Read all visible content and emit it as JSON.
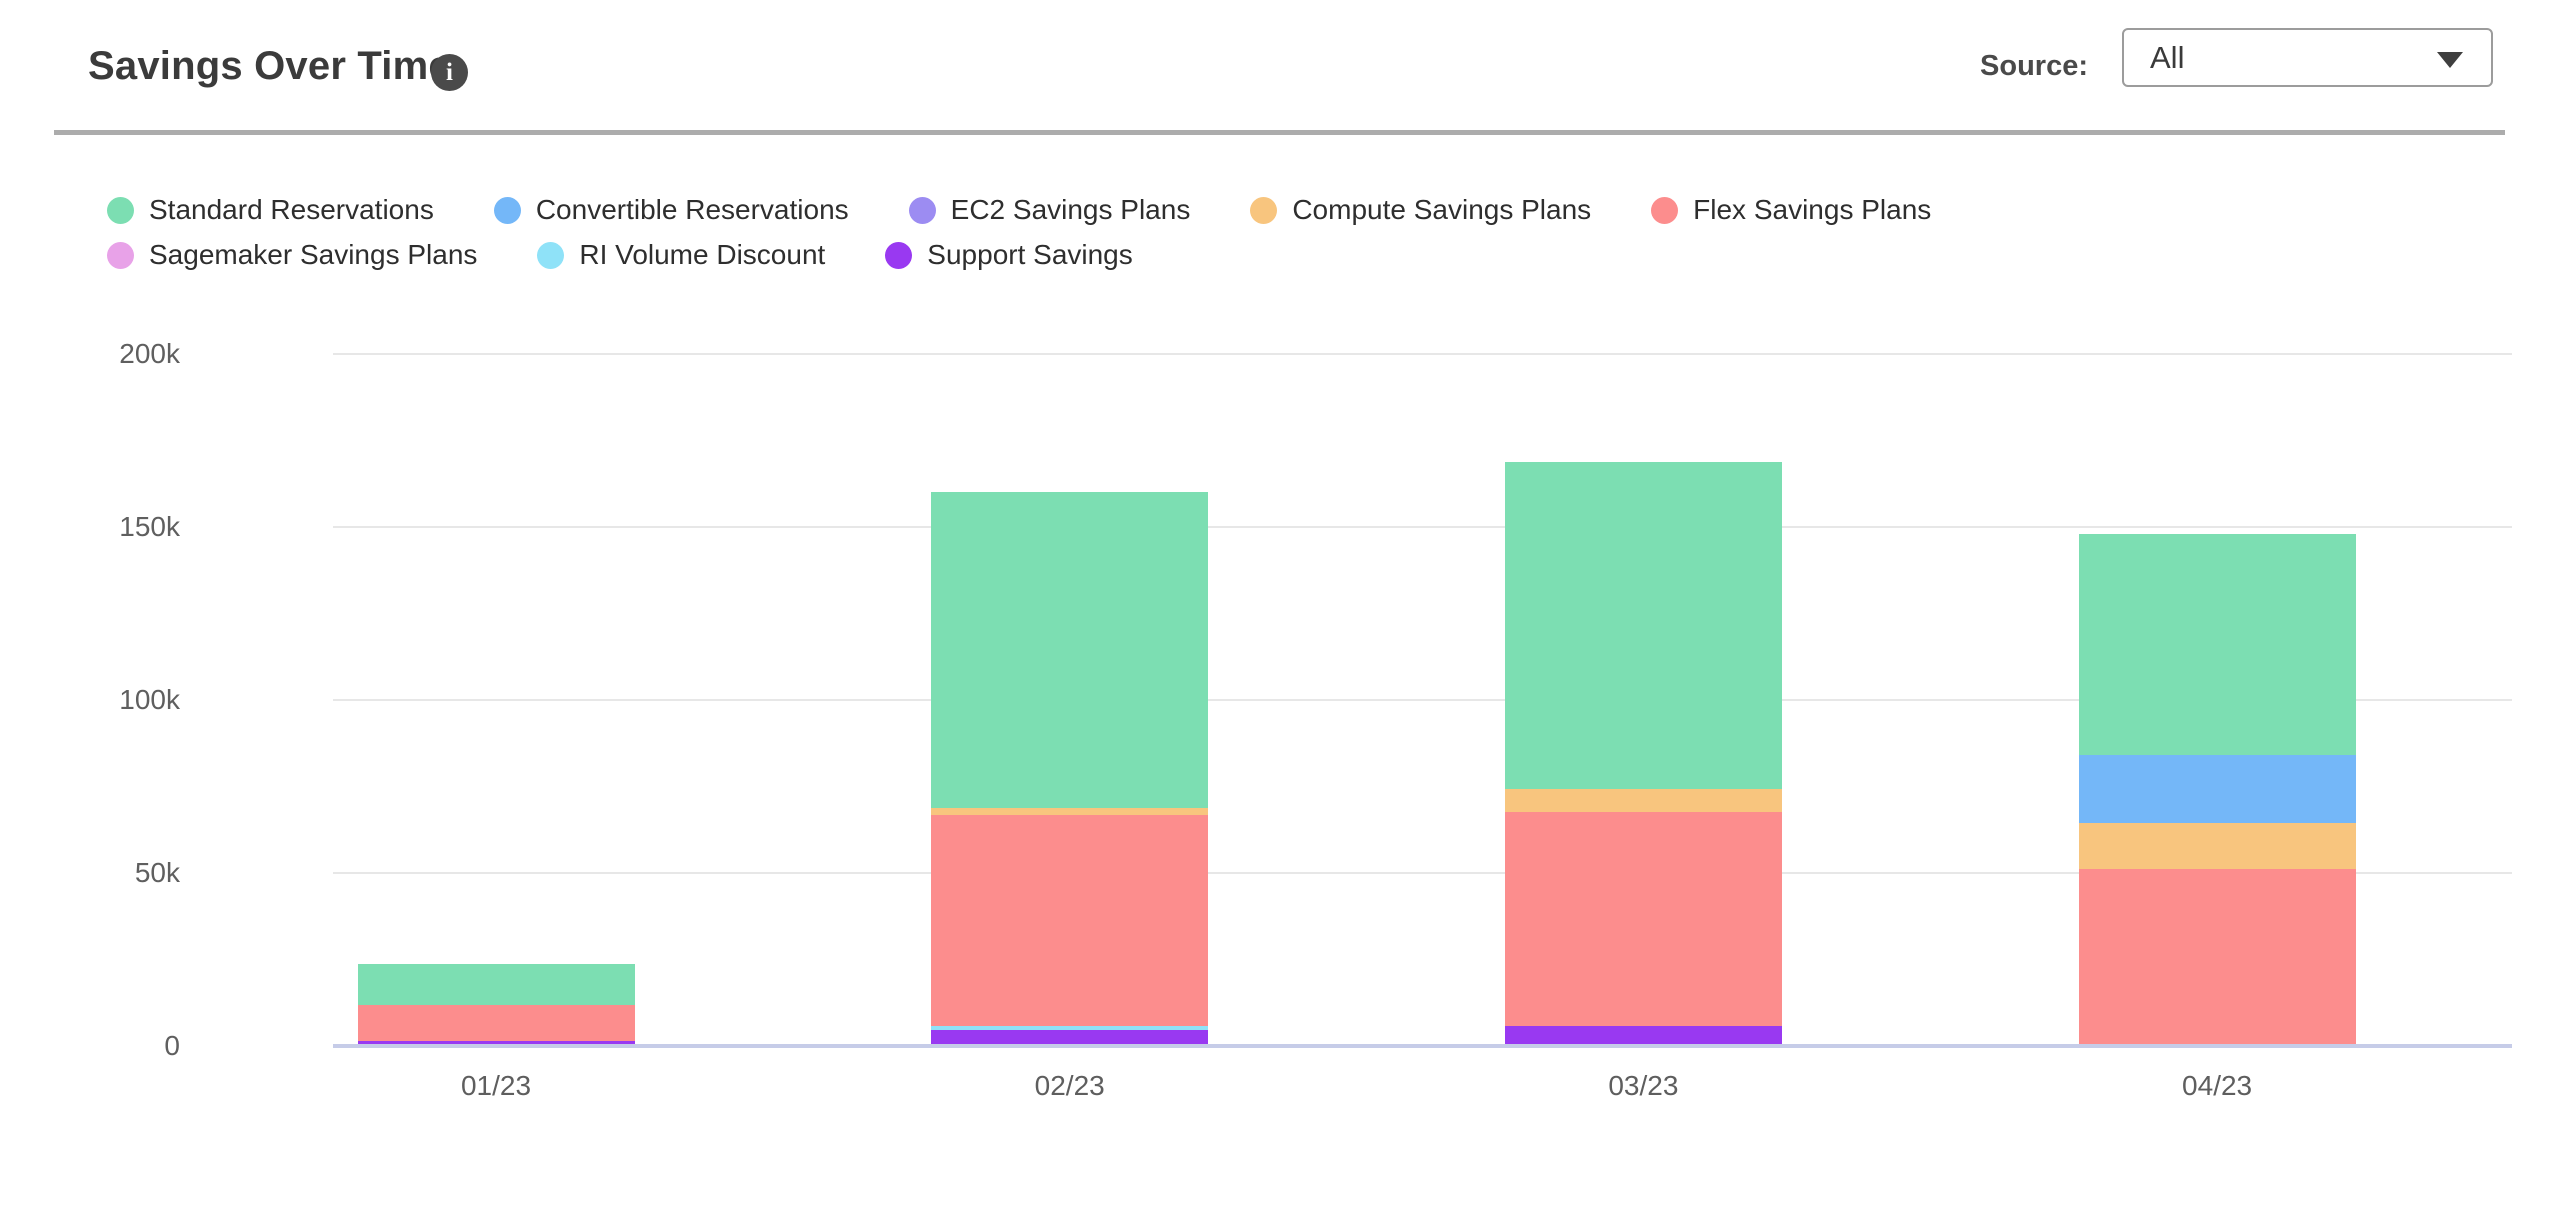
{
  "header": {
    "title": "Savings Over Time",
    "info_icon": "i",
    "source_label": "Source:",
    "source_value": "All"
  },
  "chart_data": {
    "type": "bar",
    "stacked": true,
    "title": "Savings Over Time",
    "unit": "USD thousands",
    "categories": [
      "01/23",
      "02/23",
      "03/23",
      "04/23"
    ],
    "series": [
      {
        "name": "Standard Reservations",
        "color": "#7CDEB2",
        "values": [
          12.0,
          91.5,
          94.6,
          64.0
        ]
      },
      {
        "name": "Convertible Reservations",
        "color": "#74B7F8",
        "values": [
          0,
          0,
          0,
          19.5
        ]
      },
      {
        "name": "EC2 Savings Plans",
        "color": "#9C8CF2",
        "values": [
          0,
          0,
          0,
          0
        ]
      },
      {
        "name": "Compute Savings Plans",
        "color": "#F8C57E",
        "values": [
          0,
          2.0,
          6.5,
          13.5
        ]
      },
      {
        "name": "Flex Savings Plans",
        "color": "#FC8D8D",
        "values": [
          10.3,
          61.0,
          62.0,
          50.5
        ]
      },
      {
        "name": "Sagemaker Savings Plans",
        "color": "#E8A2E8",
        "values": [
          0,
          0,
          0,
          0
        ]
      },
      {
        "name": "RI Volume Discount",
        "color": "#8FE2F8",
        "values": [
          0,
          1.2,
          0,
          0
        ]
      },
      {
        "name": "Support Savings",
        "color": "#9939F1",
        "values": [
          0.9,
          4.0,
          5.2,
          0
        ]
      }
    ],
    "stack_order_bottom_to_top": [
      "Support Savings",
      "RI Volume Discount",
      "Flex Savings Plans",
      "Compute Savings Plans",
      "Convertible Reservations",
      "Standard Reservations"
    ],
    "legend_rows": [
      [
        "Standard Reservations",
        "Convertible Reservations",
        "EC2 Savings Plans",
        "Compute Savings Plans",
        "Flex Savings Plans"
      ],
      [
        "Sagemaker Savings Plans",
        "RI Volume Discount",
        "Support Savings"
      ]
    ],
    "ylim": [
      0,
      200
    ],
    "ytick_values": [
      0,
      50,
      100,
      150,
      200
    ],
    "ytick_labels": [
      "0",
      "50k",
      "100k",
      "150k",
      "200k"
    ],
    "xlabel": "",
    "ylabel": "",
    "grid": "horizontal",
    "gridline_color": "#E7E7E7",
    "axis_line_color": "#C6CCE8",
    "legend_position": "top-left"
  }
}
